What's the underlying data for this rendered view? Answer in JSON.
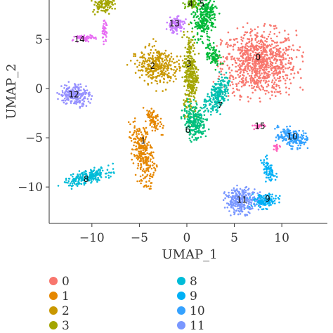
{
  "chart_data": {
    "type": "scatter",
    "xlabel": "UMAP_1",
    "ylabel": "UMAP_2",
    "xlim": [
      -14.5,
      14.8
    ],
    "ylim": [
      -13.7,
      9.0
    ],
    "x_ticks": [
      -10,
      -5,
      0,
      5,
      10
    ],
    "y_ticks": [
      -10,
      -5,
      0,
      5
    ],
    "x_tick_labels": [
      "−10",
      "−5",
      "0",
      "5",
      "10"
    ],
    "y_tick_labels": [
      "−10",
      "−5",
      "0",
      "5"
    ],
    "grid": false,
    "legend_position": "bottom",
    "clusters": [
      {
        "name": "0",
        "color": "#F8766D",
        "label_x": 7.5,
        "label_y": 3.2,
        "blobs": [
          {
            "x": 7.6,
            "y": 2.6,
            "rx": 4.3,
            "ry": 3.6,
            "n": 900,
            "rot": 0
          }
        ]
      },
      {
        "name": "1",
        "color": "#E58700",
        "label_x": -4.6,
        "label_y": -5.3,
        "blobs": [
          {
            "x": -4.6,
            "y": -6.6,
            "rx": 1.2,
            "ry": 3.4,
            "n": 280,
            "rot": 0.2
          },
          {
            "x": -3.5,
            "y": -3.2,
            "rx": 0.7,
            "ry": 1.6,
            "n": 80,
            "rot": 0.5
          }
        ]
      },
      {
        "name": "2",
        "color": "#C99800",
        "label_x": -3.6,
        "label_y": 2.3,
        "blobs": [
          {
            "x": -3.2,
            "y": 2.3,
            "rx": 2.4,
            "ry": 2.0,
            "n": 320,
            "rot": -0.5
          }
        ]
      },
      {
        "name": "3",
        "color": "#A3A500",
        "label_x": 0.2,
        "label_y": 2.5,
        "blobs": [
          {
            "x": 0.4,
            "y": 1.5,
            "rx": 0.8,
            "ry": 4.5,
            "n": 320,
            "rot": 0
          },
          {
            "x": -8.8,
            "y": 8.6,
            "rx": 1.3,
            "ry": 1.0,
            "n": 110,
            "rot": 0
          }
        ]
      },
      {
        "name": "4",
        "color": "#6BB100",
        "label_x": 0.4,
        "label_y": 8.6,
        "blobs": [
          {
            "x": 0.6,
            "y": 8.6,
            "rx": 0.9,
            "ry": 0.6,
            "n": 50,
            "rot": 0
          }
        ]
      },
      {
        "name": "5",
        "color": "#00BA38",
        "label_x": 1.6,
        "label_y": 8.6,
        "blobs": [
          {
            "x": 1.8,
            "y": 7.3,
            "rx": 1.3,
            "ry": 2.4,
            "n": 260,
            "rot": -0.3
          },
          {
            "x": 2.7,
            "y": 3.5,
            "rx": 0.7,
            "ry": 1.6,
            "n": 90,
            "rot": 0.3
          }
        ]
      },
      {
        "name": "6",
        "color": "#00BF7D",
        "label_x": 0.1,
        "label_y": -4.2,
        "blobs": [
          {
            "x": 0.8,
            "y": -3.3,
            "rx": 1.2,
            "ry": 2.1,
            "n": 240,
            "rot": 0.2
          }
        ]
      },
      {
        "name": "7",
        "color": "#00C0AF",
        "label_x": 3.5,
        "label_y": -1.7,
        "blobs": [
          {
            "x": 3.2,
            "y": -0.8,
            "rx": 1.1,
            "ry": 2.3,
            "n": 220,
            "rot": -0.5
          }
        ]
      },
      {
        "name": "8",
        "color": "#00BCD8",
        "label_x": -10.6,
        "label_y": -9.2,
        "blobs": [
          {
            "x": -10.5,
            "y": -9.0,
            "rx": 2.8,
            "ry": 0.7,
            "n": 220,
            "rot": 0.25
          }
        ]
      },
      {
        "name": "9",
        "color": "#00B0F6",
        "label_x": 8.5,
        "label_y": -11.2,
        "blobs": [
          {
            "x": 8.1,
            "y": -11.4,
            "rx": 1.6,
            "ry": 0.8,
            "n": 150,
            "rot": 0
          },
          {
            "x": 8.6,
            "y": -8.3,
            "rx": 0.6,
            "ry": 1.4,
            "n": 80,
            "rot": 0.3
          }
        ]
      },
      {
        "name": "10",
        "color": "#35A2FF",
        "label_x": 11.1,
        "label_y": -4.9,
        "blobs": [
          {
            "x": 11.1,
            "y": -5.0,
            "rx": 1.8,
            "ry": 1.0,
            "n": 200,
            "rot": -0.3
          }
        ]
      },
      {
        "name": "11",
        "color": "#7997FF",
        "label_x": 5.8,
        "label_y": -11.3,
        "blobs": [
          {
            "x": 5.7,
            "y": -11.4,
            "rx": 1.8,
            "ry": 1.4,
            "n": 260,
            "rot": 0
          }
        ]
      },
      {
        "name": "12",
        "color": "#9590FF",
        "label_x": -11.9,
        "label_y": -0.6,
        "blobs": [
          {
            "x": -11.8,
            "y": -0.6,
            "rx": 1.7,
            "ry": 1.2,
            "n": 220,
            "rot": 0
          }
        ]
      },
      {
        "name": "13",
        "color": "#C77CFF",
        "label_x": -1.3,
        "label_y": 6.6,
        "blobs": [
          {
            "x": -1.2,
            "y": 6.5,
            "rx": 1.0,
            "ry": 0.9,
            "n": 110,
            "rot": 0
          }
        ]
      },
      {
        "name": "14",
        "color": "#E76BF3",
        "label_x": -11.3,
        "label_y": 5.0,
        "blobs": [
          {
            "x": -10.9,
            "y": 5.1,
            "rx": 1.4,
            "ry": 0.35,
            "n": 60,
            "rot": 0.1
          },
          {
            "x": -8.7,
            "y": 5.8,
            "rx": 0.3,
            "ry": 1.2,
            "n": 40,
            "rot": 0
          }
        ]
      },
      {
        "name": "15",
        "color": "#FF62BC",
        "label_x": 7.7,
        "label_y": -3.8,
        "blobs": [
          {
            "x": 7.6,
            "y": -3.8,
            "rx": 0.7,
            "ry": 0.3,
            "n": 25,
            "rot": 0
          },
          {
            "x": 9.5,
            "y": -6.0,
            "rx": 0.4,
            "ry": 0.3,
            "n": 20,
            "rot": 0
          }
        ]
      }
    ],
    "legend": [
      {
        "name": "0",
        "color": "#F8766D"
      },
      {
        "name": "1",
        "color": "#E58700"
      },
      {
        "name": "2",
        "color": "#C99800"
      },
      {
        "name": "3",
        "color": "#A3A500"
      },
      {
        "name": "8",
        "color": "#00BCD8"
      },
      {
        "name": "9",
        "color": "#00B0F6"
      },
      {
        "name": "10",
        "color": "#35A2FF"
      },
      {
        "name": "11",
        "color": "#7997FF"
      }
    ]
  }
}
